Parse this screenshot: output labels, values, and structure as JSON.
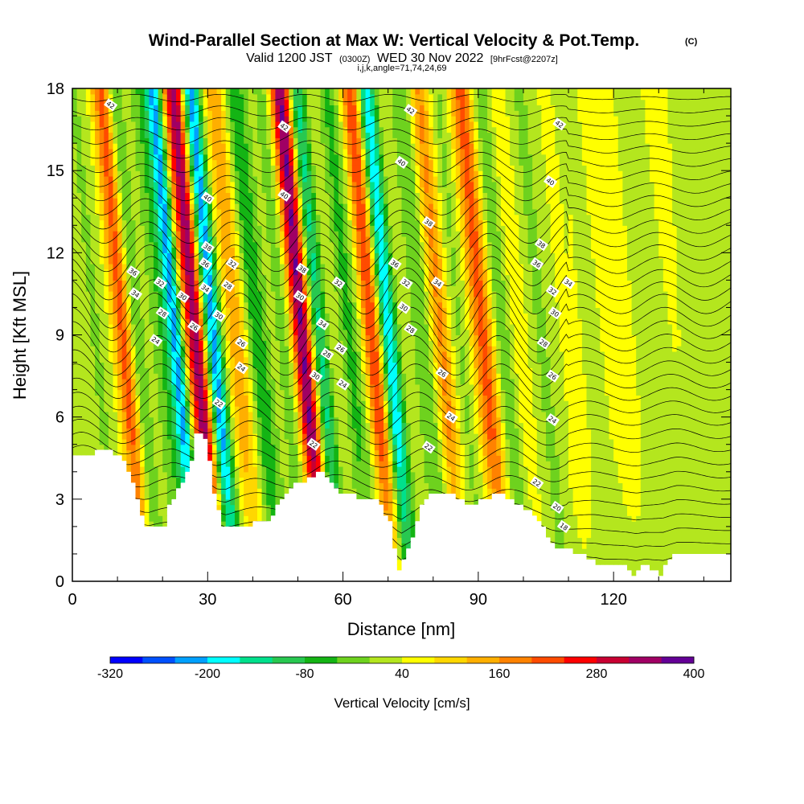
{
  "title": {
    "main": "Wind-Parallel Section at Max W: Vertical Velocity & Pot.Temp.",
    "copyright": "(C)",
    "valid_prefix": "Valid 1200 JST",
    "valid_utc": "(0300Z)",
    "valid_date": "WED 30 Nov 2022",
    "forecast": "[9hrFcst@2207z]",
    "indices": "i,j,k,angle=71,74,24,69"
  },
  "chart_data": {
    "type": "heatmap",
    "xlabel": "Distance [nm]",
    "ylabel": "Height [Kft MSL]",
    "xlim": [
      0,
      146
    ],
    "ylim": [
      0,
      18
    ],
    "x_ticks": [
      0,
      30,
      60,
      90,
      120
    ],
    "x_tick_labels": [
      "0",
      "30",
      "60",
      "90",
      "120"
    ],
    "x_minor_ticks": [
      10,
      20,
      40,
      50,
      70,
      80,
      100,
      110,
      130,
      140
    ],
    "y_ticks": [
      0,
      3,
      6,
      9,
      12,
      15,
      18
    ],
    "y_tick_labels": [
      "0",
      "3",
      "6",
      "9",
      "12",
      "15",
      "18"
    ],
    "y_minor_ticks": [
      1,
      2,
      4,
      5,
      7,
      8,
      10,
      11,
      13,
      14,
      16,
      17
    ],
    "terrain_kft": [
      [
        0,
        4.5
      ],
      [
        9,
        4.8
      ],
      [
        12,
        4.4
      ],
      [
        14,
        3.6
      ],
      [
        16,
        2.4
      ],
      [
        17,
        2.0
      ],
      [
        21,
        2.0
      ],
      [
        22,
        2.8
      ],
      [
        25,
        3.6
      ],
      [
        27,
        4.4
      ],
      [
        28,
        5.4
      ],
      [
        30,
        5.2
      ],
      [
        31,
        4.4
      ],
      [
        32,
        3.2
      ],
      [
        34,
        2.0
      ],
      [
        39,
        2.0
      ],
      [
        43,
        2.2
      ],
      [
        45,
        2.4
      ],
      [
        46,
        2.8
      ],
      [
        48,
        3.2
      ],
      [
        50,
        3.6
      ],
      [
        52,
        3.6
      ],
      [
        54,
        3.8
      ],
      [
        56,
        4.0
      ],
      [
        58,
        3.6
      ],
      [
        60,
        3.2
      ],
      [
        62,
        3.2
      ],
      [
        64,
        3.0
      ],
      [
        66,
        3.0
      ],
      [
        68,
        3.0
      ],
      [
        71,
        2.2
      ],
      [
        72,
        1.2
      ],
      [
        73,
        0.4
      ],
      [
        74,
        0.8
      ],
      [
        76,
        1.6
      ],
      [
        78,
        2.8
      ],
      [
        80,
        3.2
      ],
      [
        85,
        3.2
      ],
      [
        88,
        2.8
      ],
      [
        92,
        3.0
      ],
      [
        95,
        3.2
      ],
      [
        98,
        3.0
      ],
      [
        100,
        2.8
      ],
      [
        104,
        2.2
      ],
      [
        106,
        1.6
      ],
      [
        108,
        1.2
      ],
      [
        110,
        1.2
      ],
      [
        116,
        0.8
      ],
      [
        118,
        0.5
      ],
      [
        123,
        0.5
      ],
      [
        125,
        0.3
      ],
      [
        127,
        0.6
      ],
      [
        131,
        0.3
      ],
      [
        134,
        1.0
      ],
      [
        146,
        1.0
      ]
    ],
    "vertical_velocity_bands": [
      {
        "x": 4,
        "w": 5,
        "v": 20
      },
      {
        "x": 11,
        "w": 3,
        "v": -40
      },
      {
        "x": 14,
        "w": 2,
        "v": 40
      },
      {
        "x": 16.5,
        "w": 1.6,
        "v": 200
      },
      {
        "x": 19,
        "w": 1.5,
        "v": -120
      },
      {
        "x": 21,
        "w": 1.8,
        "v": 60
      },
      {
        "x": 24,
        "w": 2.5,
        "v": -60
      },
      {
        "x": 28,
        "w": 1.5,
        "v": -240
      },
      {
        "x": 30,
        "w": 1.2,
        "v": 120
      },
      {
        "x": 32.5,
        "w": 1.5,
        "v": 320
      },
      {
        "x": 36,
        "w": 1.5,
        "v": -260
      },
      {
        "x": 38.5,
        "w": 1.3,
        "v": 0
      },
      {
        "x": 41.5,
        "w": 2.2,
        "v": 140
      },
      {
        "x": 45.5,
        "w": 2.0,
        "v": -120
      },
      {
        "x": 49,
        "w": 2.5,
        "v": 20
      },
      {
        "x": 52,
        "w": 1.5,
        "v": -60
      },
      {
        "x": 56,
        "w": 1.7,
        "v": 360
      },
      {
        "x": 59.5,
        "w": 1.6,
        "v": -200
      },
      {
        "x": 62.5,
        "w": 2.0,
        "v": 60
      },
      {
        "x": 66,
        "w": 2.0,
        "v": -80
      },
      {
        "x": 71.5,
        "w": 1.6,
        "v": 230
      },
      {
        "x": 75,
        "w": 1.5,
        "v": -240
      },
      {
        "x": 78.5,
        "w": 2.2,
        "v": 40
      },
      {
        "x": 83,
        "w": 2.5,
        "v": -80
      },
      {
        "x": 86.5,
        "w": 1.8,
        "v": 180
      },
      {
        "x": 90.5,
        "w": 2.0,
        "v": -40
      },
      {
        "x": 96,
        "w": 2.0,
        "v": 200
      },
      {
        "x": 100,
        "w": 1.8,
        "v": -80
      },
      {
        "x": 104,
        "w": 2.2,
        "v": 60
      },
      {
        "x": 109,
        "w": 3.0,
        "v": -40
      },
      {
        "x": 114,
        "w": 3.0,
        "v": 40
      },
      {
        "x": 120,
        "w": 3.5,
        "v": -20
      },
      {
        "x": 126,
        "w": 4.0,
        "v": 40
      },
      {
        "x": 132,
        "w": 3.0,
        "v": -20
      },
      {
        "x": 139,
        "w": 4.0,
        "v": 30
      }
    ],
    "theta_contours": {
      "levels_shown": [
        18,
        20,
        22,
        24,
        26,
        28,
        30,
        32,
        34,
        36,
        38,
        40,
        42
      ],
      "labels": [
        {
          "text": "42",
          "x": 8.5,
          "y": 17.4
        },
        {
          "text": "42",
          "x": 47,
          "y": 16.6
        },
        {
          "text": "42",
          "x": 75,
          "y": 17.2
        },
        {
          "text": "42",
          "x": 108,
          "y": 16.7
        },
        {
          "text": "40",
          "x": 30,
          "y": 14.0
        },
        {
          "text": "40",
          "x": 47,
          "y": 14.1
        },
        {
          "text": "40",
          "x": 73,
          "y": 15.3
        },
        {
          "text": "40",
          "x": 106,
          "y": 14.6
        },
        {
          "text": "38",
          "x": 30,
          "y": 12.2
        },
        {
          "text": "38",
          "x": 51,
          "y": 11.4
        },
        {
          "text": "38",
          "x": 79,
          "y": 13.1
        },
        {
          "text": "38",
          "x": 104,
          "y": 12.3
        },
        {
          "text": "36",
          "x": 13.5,
          "y": 11.3
        },
        {
          "text": "36",
          "x": 29.5,
          "y": 11.6
        },
        {
          "text": "36",
          "x": 71.5,
          "y": 11.6
        },
        {
          "text": "36",
          "x": 103,
          "y": 11.6
        },
        {
          "text": "34",
          "x": 14,
          "y": 10.5
        },
        {
          "text": "34",
          "x": 29.5,
          "y": 10.7
        },
        {
          "text": "34",
          "x": 55.5,
          "y": 9.4
        },
        {
          "text": "34",
          "x": 81,
          "y": 10.9
        },
        {
          "text": "34",
          "x": 110,
          "y": 10.9
        },
        {
          "text": "32",
          "x": 19.5,
          "y": 10.9
        },
        {
          "text": "32",
          "x": 35.5,
          "y": 11.6
        },
        {
          "text": "32",
          "x": 59,
          "y": 10.9
        },
        {
          "text": "32",
          "x": 74,
          "y": 10.9
        },
        {
          "text": "32",
          "x": 106.5,
          "y": 10.6
        },
        {
          "text": "30",
          "x": 24.5,
          "y": 10.4
        },
        {
          "text": "30",
          "x": 32.5,
          "y": 9.7
        },
        {
          "text": "30",
          "x": 50.5,
          "y": 10.4
        },
        {
          "text": "30",
          "x": 73.5,
          "y": 10.0
        },
        {
          "text": "30",
          "x": 107,
          "y": 9.8
        },
        {
          "text": "30",
          "x": 54,
          "y": 7.5
        },
        {
          "text": "28",
          "x": 20,
          "y": 9.8
        },
        {
          "text": "28",
          "x": 34.5,
          "y": 10.8
        },
        {
          "text": "28",
          "x": 56.5,
          "y": 8.3
        },
        {
          "text": "28",
          "x": 75,
          "y": 9.2
        },
        {
          "text": "28",
          "x": 104.5,
          "y": 8.7
        },
        {
          "text": "26",
          "x": 27,
          "y": 9.3
        },
        {
          "text": "26",
          "x": 37.5,
          "y": 8.7
        },
        {
          "text": "26",
          "x": 59.5,
          "y": 8.5
        },
        {
          "text": "26",
          "x": 82,
          "y": 7.6
        },
        {
          "text": "26",
          "x": 106.5,
          "y": 7.5
        },
        {
          "text": "24",
          "x": 18.5,
          "y": 8.8
        },
        {
          "text": "24",
          "x": 37.5,
          "y": 7.8
        },
        {
          "text": "24",
          "x": 60,
          "y": 7.2
        },
        {
          "text": "24",
          "x": 84,
          "y": 6.0
        },
        {
          "text": "24",
          "x": 106.5,
          "y": 5.9
        },
        {
          "text": "22",
          "x": 32.5,
          "y": 6.5
        },
        {
          "text": "22",
          "x": 53.5,
          "y": 5.0
        },
        {
          "text": "22",
          "x": 79,
          "y": 4.9
        },
        {
          "text": "22",
          "x": 103,
          "y": 3.6
        },
        {
          "text": "20",
          "x": 107.5,
          "y": 2.7
        },
        {
          "text": "18",
          "x": 109,
          "y": 2.0
        }
      ]
    }
  },
  "colorbar": {
    "title": "Vertical Velocity [cm/s]",
    "min": -320,
    "max": 400,
    "step": 40,
    "tick_labels": [
      "-320",
      "-200",
      "-80",
      "40",
      "160",
      "280",
      "400"
    ],
    "colors": [
      "#0000ff",
      "#0050ff",
      "#00a0ff",
      "#00ffff",
      "#00e08c",
      "#28c850",
      "#14b414",
      "#6ed21e",
      "#b4e61e",
      "#ffff00",
      "#ffd700",
      "#ffaf00",
      "#ff8200",
      "#ff4b00",
      "#ff0000",
      "#c80032",
      "#a00064",
      "#640096"
    ]
  }
}
